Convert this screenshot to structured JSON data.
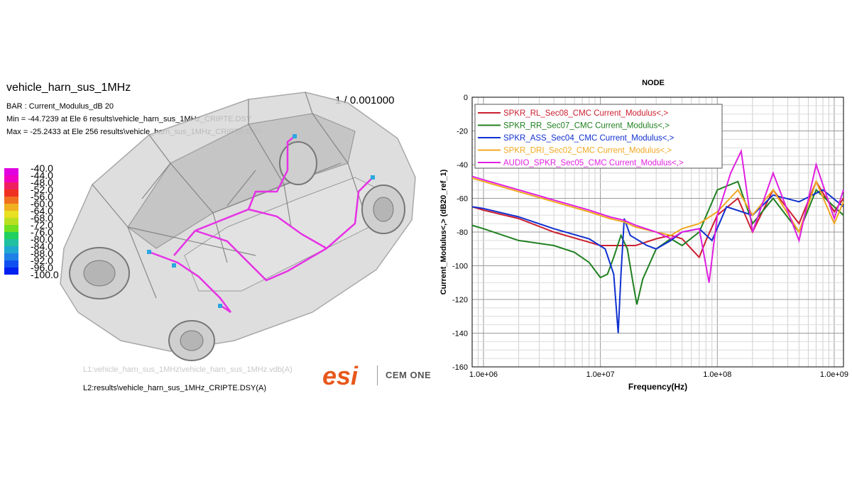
{
  "simulation": {
    "title": "vehicle_harn_sus_1MHz",
    "frame": "1 / 0.001000",
    "bar_line": "BAR : Current_Modulus_dB 20",
    "min_line": "Min = -44.7239 at Ele 6 results\\vehicle_harn_sus_1MHz_CRIPTE.DSY",
    "max_line": "Max = -25.2433 at Ele 256 results\\vehicle_harn_sus_1MHz_CRIPTE.DSY",
    "file_l1": "L1:vehicle_harn_sus_1MHz\\vehicle_harn_sus_1MHz.vdb(A)",
    "file_l2": "L2:results\\vehicle_harn_sus_1MHz_CRIPTE.DSY(A)",
    "harness_color": "#e632e6",
    "colorbar": {
      "labels": [
        "-40.0",
        "-44.0",
        "-48.0",
        "-52.0",
        "-56.0",
        "-60.0",
        "-64.0",
        "-68.0",
        "-72.0",
        "-76.0",
        "-80.0",
        "-84.0",
        "-88.0",
        "-92.0",
        "-96.0",
        "-100.0"
      ],
      "colors": [
        "#e000e0",
        "#f000c0",
        "#f02060",
        "#f03020",
        "#f07020",
        "#f0b020",
        "#e8e020",
        "#b8e020",
        "#70e020",
        "#20d060",
        "#20c0a0",
        "#20a8d0",
        "#2080e8",
        "#1050f0",
        "#0020f0"
      ]
    }
  },
  "brand": {
    "logo_text": "esi",
    "logo_color": "#e8581c",
    "name": "CEM ONE"
  },
  "chart_data": {
    "type": "line",
    "title": "NODE",
    "xlabel": "Frequency(Hz)",
    "ylabel": "Current_Modulus<,> (dB20_ref_1)",
    "xscale": "log",
    "xlim": [
      800000,
      1200000000
    ],
    "ylim": [
      -160,
      0
    ],
    "xticks": [
      {
        "v": 1000000,
        "label": "1.0e+06"
      },
      {
        "v": 10000000,
        "label": "1.0e+07"
      },
      {
        "v": 100000000,
        "label": "1.0e+08"
      },
      {
        "v": 1000000000,
        "label": "1.0e+09"
      }
    ],
    "yticks": [
      0,
      -20,
      -40,
      -60,
      -80,
      -100,
      -120,
      -140,
      -160
    ],
    "grid": true,
    "legend_position": "top-left",
    "series": [
      {
        "name": "SPKR_RL_Sec08_CMC Current_Modulus<,>",
        "color": "#cc2030",
        "points": [
          [
            800000.0,
            -65
          ],
          [
            1000000.0,
            -67
          ],
          [
            2000000.0,
            -72
          ],
          [
            4000000.0,
            -80
          ],
          [
            8000000.0,
            -86
          ],
          [
            10000000.0,
            -88
          ],
          [
            15000000.0,
            -88
          ],
          [
            20000000.0,
            -88
          ],
          [
            30000000.0,
            -84
          ],
          [
            40000000.0,
            -82
          ],
          [
            50000000.0,
            -84
          ],
          [
            60000000.0,
            -90
          ],
          [
            70000000.0,
            -95
          ],
          [
            80000000.0,
            -85
          ],
          [
            100000000.0,
            -70
          ],
          [
            150000000.0,
            -60
          ],
          [
            200000000.0,
            -80
          ],
          [
            300000000.0,
            -55
          ],
          [
            500000000.0,
            -75
          ],
          [
            700000000.0,
            -50
          ],
          [
            1000000000.0,
            -68
          ],
          [
            1200000000.0,
            -60
          ]
        ]
      },
      {
        "name": "SPKR_RR_Sec07_CMC Current_Modulus<,>",
        "color": "#208020",
        "points": [
          [
            800000.0,
            -76
          ],
          [
            1000000.0,
            -78
          ],
          [
            2000000.0,
            -85
          ],
          [
            4000000.0,
            -88
          ],
          [
            6000000.0,
            -92
          ],
          [
            8000000.0,
            -98
          ],
          [
            10000000.0,
            -107
          ],
          [
            11500000.0,
            -105
          ],
          [
            13000000.0,
            -95
          ],
          [
            15000000.0,
            -82
          ],
          [
            17000000.0,
            -90
          ],
          [
            19000000.0,
            -110
          ],
          [
            20500000.0,
            -123
          ],
          [
            23000000.0,
            -108
          ],
          [
            30000000.0,
            -90
          ],
          [
            40000000.0,
            -84
          ],
          [
            50000000.0,
            -88
          ],
          [
            70000000.0,
            -80
          ],
          [
            100000000.0,
            -55
          ],
          [
            150000000.0,
            -50
          ],
          [
            200000000.0,
            -75
          ],
          [
            300000000.0,
            -60
          ],
          [
            500000000.0,
            -80
          ],
          [
            700000000.0,
            -55
          ],
          [
            1000000000.0,
            -65
          ],
          [
            1200000000.0,
            -70
          ]
        ]
      },
      {
        "name": "SPKR_ASS_Sec04_CMC Current_Modulus<,>",
        "color": "#1030d0",
        "points": [
          [
            800000.0,
            -65
          ],
          [
            1000000.0,
            -66
          ],
          [
            2000000.0,
            -71
          ],
          [
            4000000.0,
            -78
          ],
          [
            8000000.0,
            -84
          ],
          [
            11000000.0,
            -90
          ],
          [
            13000000.0,
            -105
          ],
          [
            14200000.0,
            -140
          ],
          [
            15000000.0,
            -105
          ],
          [
            16000000.0,
            -72
          ],
          [
            18000000.0,
            -82
          ],
          [
            25000000.0,
            -88
          ],
          [
            30000000.0,
            -90
          ],
          [
            40000000.0,
            -85
          ],
          [
            50000000.0,
            -80
          ],
          [
            70000000.0,
            -78
          ],
          [
            90000000.0,
            -85
          ],
          [
            120000000.0,
            -65
          ],
          [
            200000000.0,
            -70
          ],
          [
            300000000.0,
            -58
          ],
          [
            500000000.0,
            -62
          ],
          [
            800000000.0,
            -55
          ],
          [
            1200000000.0,
            -65
          ]
        ]
      },
      {
        "name": "SPKR_DRI_Sec02_CMC Current_Modulus<,>",
        "color": "#f0a820",
        "points": [
          [
            800000.0,
            -48
          ],
          [
            1000000.0,
            -50
          ],
          [
            2000000.0,
            -56
          ],
          [
            4000000.0,
            -62
          ],
          [
            8000000.0,
            -68
          ],
          [
            12000000.0,
            -72
          ],
          [
            16000000.0,
            -74
          ],
          [
            20000000.0,
            -77
          ],
          [
            30000000.0,
            -80
          ],
          [
            40000000.0,
            -82
          ],
          [
            50000000.0,
            -78
          ],
          [
            70000000.0,
            -75
          ],
          [
            100000000.0,
            -68
          ],
          [
            150000000.0,
            -55
          ],
          [
            200000000.0,
            -70
          ],
          [
            300000000.0,
            -55
          ],
          [
            500000000.0,
            -80
          ],
          [
            700000000.0,
            -50
          ],
          [
            1000000000.0,
            -75
          ],
          [
            1200000000.0,
            -62
          ]
        ]
      },
      {
        "name": "AUDIO_SPKR_Sec05_CMC Current_Modulus<,>",
        "color": "#e020e0",
        "points": [
          [
            800000.0,
            -47
          ],
          [
            1000000.0,
            -49
          ],
          [
            2000000.0,
            -55
          ],
          [
            4000000.0,
            -61
          ],
          [
            8000000.0,
            -67
          ],
          [
            12000000.0,
            -71
          ],
          [
            16000000.0,
            -73
          ],
          [
            20000000.0,
            -76
          ],
          [
            30000000.0,
            -80
          ],
          [
            40000000.0,
            -84
          ],
          [
            50000000.0,
            -80
          ],
          [
            70000000.0,
            -78
          ],
          [
            85000000.0,
            -110
          ],
          [
            100000000.0,
            -70
          ],
          [
            130000000.0,
            -45
          ],
          [
            160000000.0,
            -32
          ],
          [
            200000000.0,
            -80
          ],
          [
            300000000.0,
            -45
          ],
          [
            500000000.0,
            -85
          ],
          [
            700000000.0,
            -40
          ],
          [
            1000000000.0,
            -72
          ],
          [
            1200000000.0,
            -55
          ]
        ]
      }
    ]
  }
}
